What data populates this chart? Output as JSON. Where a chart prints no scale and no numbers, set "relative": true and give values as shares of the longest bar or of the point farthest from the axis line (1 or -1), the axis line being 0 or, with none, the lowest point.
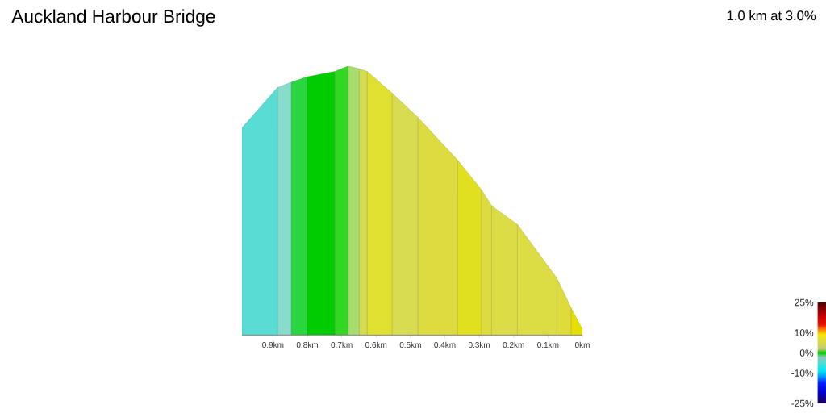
{
  "chart_data": {
    "type": "area",
    "title": "Auckland Harbour Bridge",
    "subtitle": "1.0 km at 3.0%",
    "relative": true,
    "xlim": [
      0.99,
      0
    ],
    "xticks": [
      {
        "value": 0,
        "label": "0km"
      },
      {
        "value": 0.1,
        "label": "0.1km"
      },
      {
        "value": 0.2,
        "label": "0.2km"
      },
      {
        "value": 0.3,
        "label": "0.3km"
      },
      {
        "value": 0.4,
        "label": "0.4km"
      },
      {
        "value": 0.5,
        "label": "0.5km"
      },
      {
        "value": 0.6,
        "label": "0.6km"
      },
      {
        "value": 0.7,
        "label": "0.7km"
      },
      {
        "value": 0.8,
        "label": "0.8km"
      },
      {
        "value": 0.9,
        "label": "0.9km"
      }
    ],
    "clim": [
      -25,
      25
    ],
    "cticks": [
      {
        "value": -25,
        "label": "-25%"
      },
      {
        "value": -10,
        "label": "-10%"
      },
      {
        "value": 0,
        "label": "0%"
      },
      {
        "value": 10,
        "label": "10%"
      },
      {
        "value": 25,
        "label": "25%"
      }
    ],
    "series": [
      {
        "color": "#e6e000",
        "x": [
          0,
          0.033
        ],
        "values": [
          0.02,
          0.1
        ]
      },
      {
        "color": "#dedc3c",
        "x": [
          0.033,
          0.074
        ],
        "values": [
          0.1,
          0.21
        ]
      },
      {
        "color": "#dcdc44",
        "x": [
          0.074,
          0.189
        ],
        "values": [
          0.21,
          0.41
        ]
      },
      {
        "color": "#dcdc46",
        "x": [
          0.189,
          0.264
        ],
        "values": [
          0.41,
          0.48
        ]
      },
      {
        "color": "#dcdc40",
        "x": [
          0.264,
          0.294
        ],
        "values": [
          0.48,
          0.54
        ]
      },
      {
        "color": "#e0e020",
        "x": [
          0.294,
          0.363
        ],
        "values": [
          0.54,
          0.65
        ]
      },
      {
        "color": "#dcdc40",
        "x": [
          0.363,
          0.479
        ],
        "values": [
          0.65,
          0.81
        ]
      },
      {
        "color": "#d8dc50",
        "x": [
          0.479,
          0.554
        ],
        "values": [
          0.81,
          0.9
        ]
      },
      {
        "color": "#e0e030",
        "x": [
          0.554,
          0.626
        ],
        "values": [
          0.9,
          0.98
        ]
      },
      {
        "color": "#d4dc50",
        "x": [
          0.626,
          0.649
        ],
        "values": [
          0.98,
          0.99
        ]
      },
      {
        "color": "#a8dc70",
        "x": [
          0.649,
          0.681
        ],
        "values": [
          0.99,
          1.0
        ]
      },
      {
        "color": "#33d622",
        "x": [
          0.681,
          0.721
        ],
        "values": [
          1.0,
          0.98
        ]
      },
      {
        "color": "#00cc00",
        "x": [
          0.721,
          0.8
        ],
        "values": [
          0.98,
          0.96
        ]
      },
      {
        "color": "#2ad63e",
        "x": [
          0.8,
          0.847
        ],
        "values": [
          0.96,
          0.94
        ]
      },
      {
        "color": "#88dccc",
        "x": [
          0.847,
          0.887
        ],
        "values": [
          0.94,
          0.92
        ]
      },
      {
        "color": "#58dcd4",
        "x": [
          0.887,
          0.99
        ],
        "values": [
          0.92,
          0.77
        ]
      }
    ]
  }
}
